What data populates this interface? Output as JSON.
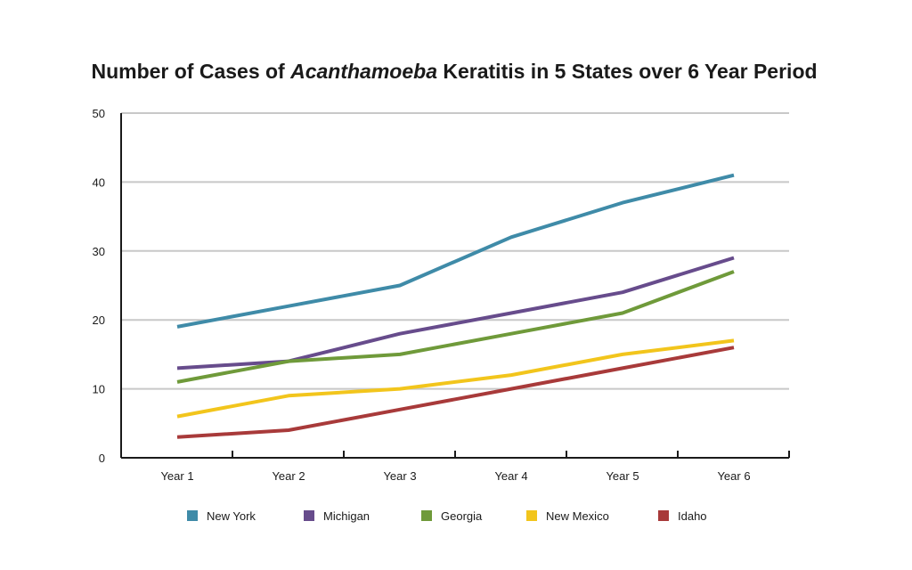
{
  "chart_data": {
    "type": "line",
    "title_parts": [
      {
        "text": "Number of Cases of ",
        "italic": false
      },
      {
        "text": "Acanthamoeba",
        "italic": true
      },
      {
        "text": " Keratitis in 5 States over 6 Year Period",
        "italic": false
      }
    ],
    "categories": [
      "Year 1",
      "Year 2",
      "Year 3",
      "Year 4",
      "Year 5",
      "Year 6"
    ],
    "ylim": [
      0,
      50
    ],
    "yticks": [
      0,
      10,
      20,
      30,
      40,
      50
    ],
    "grid": true,
    "legend_position": "bottom",
    "series": [
      {
        "name": "New York",
        "color": "#3f8ba8",
        "values": [
          19,
          22,
          25,
          32,
          37,
          41
        ]
      },
      {
        "name": "Michigan",
        "color": "#674c8c",
        "values": [
          13,
          14,
          18,
          21,
          24,
          29
        ]
      },
      {
        "name": "Georgia",
        "color": "#6f9a3a",
        "values": [
          11,
          14,
          15,
          18,
          21,
          27
        ]
      },
      {
        "name": "New Mexico",
        "color": "#f2c51c",
        "values": [
          6,
          9,
          10,
          12,
          15,
          17
        ]
      },
      {
        "name": "Idaho",
        "color": "#a83a3a",
        "values": [
          3,
          4,
          7,
          10,
          13,
          16
        ]
      }
    ]
  }
}
